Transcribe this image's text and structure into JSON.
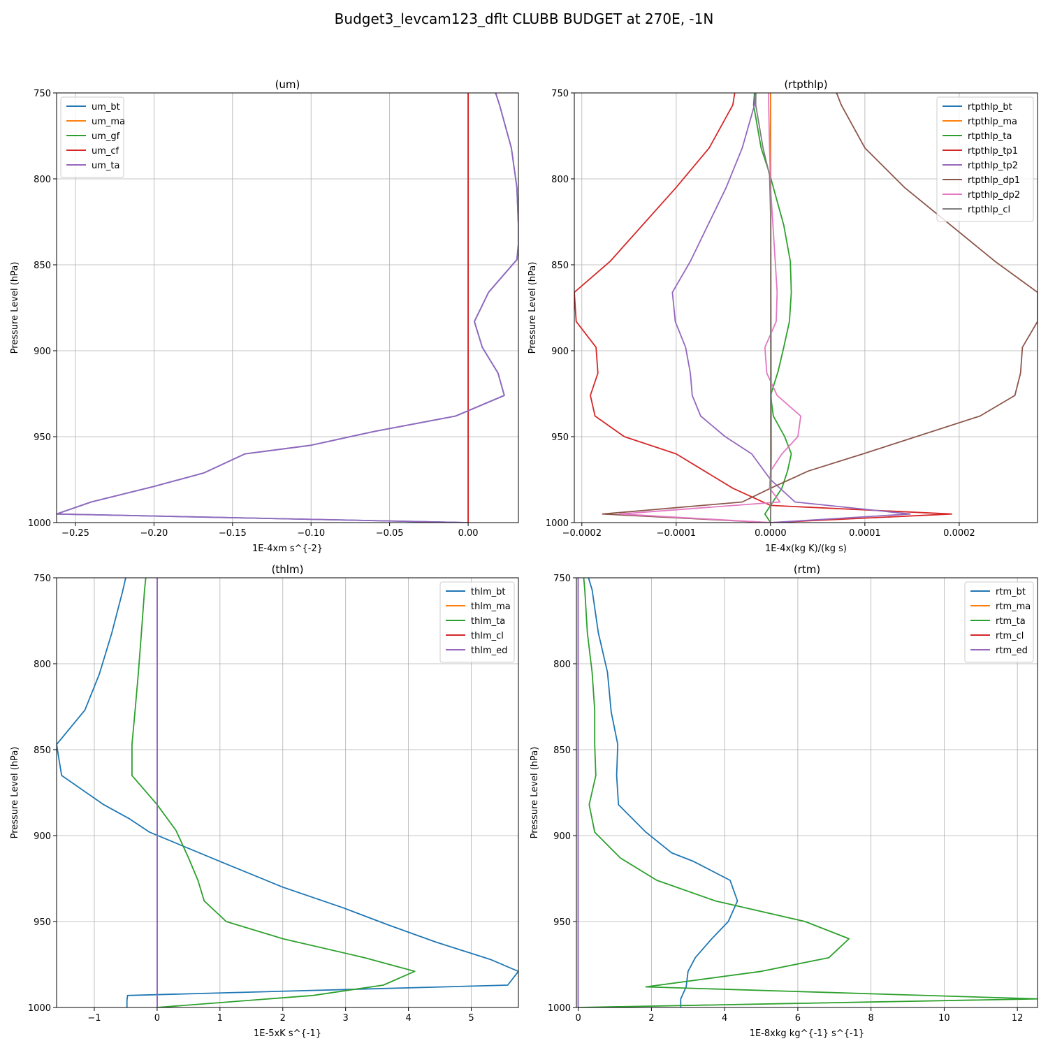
{
  "figure_title": "Budget3_levcam123_dflt CLUBB BUDGET at 270E, -1N",
  "chart_data": [
    {
      "type": "line",
      "title": "(um)",
      "xlabel": "1E-4xm s^{-2}",
      "ylabel": "Pressure Level (hPa)",
      "xlim": [
        -0.262,
        0.032
      ],
      "ylim": [
        750,
        1000
      ],
      "xticks": [
        -0.25,
        -0.2,
        -0.15,
        -0.1,
        -0.05,
        0.0
      ],
      "xtick_labels": [
        "−0.25",
        "−0.20",
        "−0.15",
        "−0.10",
        "−0.05",
        "0.00"
      ],
      "yticks": [
        750,
        800,
        850,
        900,
        950,
        1000
      ],
      "ytick_labels": [
        "750",
        "800",
        "850",
        "900",
        "950",
        "1000"
      ],
      "grid": true,
      "legend_position": "upper-left",
      "series": [
        {
          "name": "um_bt",
          "color": "#1f77b4",
          "x": [
            0.0175,
            0.02,
            0.0275,
            0.031,
            0.032,
            0.032,
            0.031,
            0.013,
            0.004,
            0.009,
            0.019,
            0.023,
            -0.008,
            -0.06,
            -0.1,
            -0.142,
            -0.168,
            -0.2,
            -0.24,
            -0.262,
            0.0
          ],
          "y": [
            750,
            757,
            782,
            805,
            827,
            838,
            847,
            866,
            883,
            898,
            913,
            926,
            938,
            947,
            955,
            960,
            971,
            979,
            988,
            995,
            1000
          ]
        },
        {
          "name": "um_ma",
          "color": "#ff7f0e",
          "x": [
            0,
            0
          ],
          "y": [
            750,
            1000
          ]
        },
        {
          "name": "um_gf",
          "color": "#2ca02c",
          "x": [
            0,
            0
          ],
          "y": [
            750,
            1000
          ]
        },
        {
          "name": "um_cf",
          "color": "#d62728",
          "x": [
            0,
            0
          ],
          "y": [
            750,
            1000
          ]
        },
        {
          "name": "um_ta",
          "color": "#9467bd",
          "x": [
            0.0175,
            0.02,
            0.0275,
            0.031,
            0.032,
            0.032,
            0.031,
            0.013,
            0.004,
            0.009,
            0.019,
            0.023,
            -0.008,
            -0.06,
            -0.1,
            -0.142,
            -0.168,
            -0.2,
            -0.24,
            -0.262,
            0.0
          ],
          "y": [
            750,
            757,
            782,
            805,
            827,
            838,
            847,
            866,
            883,
            898,
            913,
            926,
            938,
            947,
            955,
            960,
            971,
            979,
            988,
            995,
            1000
          ]
        }
      ]
    },
    {
      "type": "line",
      "title": "(rtpthlp)",
      "xlabel": "1E-4x(kg K)/(kg s)",
      "ylabel": "Pressure Level (hPa)",
      "xlim": [
        -0.000208,
        0.000283
      ],
      "ylim": [
        750,
        1000
      ],
      "xticks": [
        -0.0002,
        -0.0001,
        0.0,
        0.0001,
        0.0002
      ],
      "xtick_labels": [
        "−0.0002",
        "−0.0001",
        "0.0000",
        "0.0001",
        "0.0002"
      ],
      "yticks": [
        750,
        800,
        850,
        900,
        950,
        1000
      ],
      "ytick_labels": [
        "750",
        "800",
        "850",
        "900",
        "950",
        "1000"
      ],
      "grid": true,
      "legend_position": "upper-right",
      "series": [
        {
          "name": "rtpthlp_bt",
          "color": "#1f77b4",
          "x": [
            0,
            0
          ],
          "y": [
            750,
            1000
          ]
        },
        {
          "name": "rtpthlp_ma",
          "color": "#ff7f0e",
          "x": [
            0,
            1e-06,
            0
          ],
          "y": [
            750,
            960,
            1000
          ]
        },
        {
          "name": "rtpthlp_ta",
          "color": "#2ca02c",
          "x": [
            -1.7e-05,
            -1.8e-05,
            -1e-05,
            -1e-06,
            1.4e-05,
            2.1e-05,
            2.2e-05,
            2e-05,
            1.4e-05,
            8e-06,
            0,
            3e-06,
            1.5e-05,
            2.2e-05,
            1.8e-05,
            1.2e-05,
            -6e-06,
            0
          ],
          "y": [
            750,
            757,
            782,
            797,
            827,
            848,
            866,
            883,
            898,
            912,
            926,
            938,
            950,
            960,
            970,
            980,
            995,
            1000
          ]
        },
        {
          "name": "rtpthlp_tp1",
          "color": "#d62728",
          "x": [
            -3.8e-05,
            -4e-05,
            -6.5e-05,
            -0.0001,
            -0.00017,
            -0.000208,
            -0.000206,
            -0.000185,
            -0.000183,
            -0.000191,
            -0.000186,
            -0.000155,
            -0.0001,
            -7e-05,
            -4e-05,
            0,
            0.000192,
            0
          ],
          "y": [
            750,
            757,
            782,
            805,
            848,
            866,
            883,
            898,
            913,
            926,
            938,
            950,
            960,
            970,
            980,
            990,
            995,
            1000
          ]
        },
        {
          "name": "rtpthlp_tp2",
          "color": "#9467bd",
          "x": [
            -1.6e-05,
            -1.7e-05,
            -3e-05,
            -4.7e-05,
            -8.5e-05,
            -0.000104,
            -0.000101,
            -9e-05,
            -8.5e-05,
            -8.3e-05,
            -7.4e-05,
            -4.8e-05,
            -2e-05,
            0,
            2.6e-05,
            0.000148,
            0
          ],
          "y": [
            750,
            757,
            782,
            805,
            848,
            866,
            883,
            898,
            913,
            926,
            938,
            950,
            960,
            975,
            988,
            995,
            1000
          ]
        },
        {
          "name": "rtpthlp_dp1",
          "color": "#8c564b",
          "x": [
            7e-05,
            7.5e-05,
            0.0001,
            0.000142,
            0.000238,
            0.000283,
            0.000283,
            0.000267,
            0.000265,
            0.000259,
            0.000222,
            9.8e-05,
            4e-05,
            0,
            -3e-05,
            -0.000178,
            0
          ],
          "y": [
            750,
            757,
            782,
            805,
            848,
            866,
            883,
            898,
            913,
            926,
            938,
            960,
            970,
            980,
            988,
            995,
            1000
          ]
        },
        {
          "name": "rtpthlp_dp2",
          "color": "#e377c2",
          "x": [
            -2e-06,
            -2e-06,
            -1e-06,
            0,
            5e-06,
            7e-06,
            6e-06,
            -6e-06,
            -4e-06,
            7e-06,
            3.2e-05,
            2.9e-05,
            1.2e-05,
            0,
            -1e-06,
            1e-05,
            -0.00016,
            0
          ],
          "y": [
            750,
            757,
            782,
            805,
            848,
            866,
            883,
            898,
            913,
            926,
            938,
            950,
            960,
            970,
            980,
            988,
            995,
            1000
          ]
        },
        {
          "name": "rtpthlp_cl",
          "color": "#7f7f7f",
          "x": [
            -1.55e-05,
            -1.57e-05,
            -8e-06,
            -1e-06,
            0,
            0
          ],
          "y": [
            750,
            757,
            782,
            798,
            820,
            1000
          ]
        }
      ]
    },
    {
      "type": "line",
      "title": "(thlm)",
      "xlabel": "1E-5xK s^{-1}",
      "ylabel": "Pressure Level (hPa)",
      "xlim": [
        -1.6,
        5.75
      ],
      "ylim": [
        750,
        1000
      ],
      "xticks": [
        -1,
        0,
        1,
        2,
        3,
        4,
        5
      ],
      "xtick_labels": [
        "−1",
        "0",
        "1",
        "2",
        "3",
        "4",
        "5"
      ],
      "yticks": [
        750,
        800,
        850,
        900,
        950,
        1000
      ],
      "ytick_labels": [
        "750",
        "800",
        "850",
        "900",
        "950",
        "1000"
      ],
      "grid": true,
      "legend_position": "upper-right",
      "series": [
        {
          "name": "thlm_bt",
          "color": "#1f77b4",
          "x": [
            -0.5,
            -0.55,
            -0.72,
            -0.92,
            -1.15,
            -1.6,
            -1.52,
            -0.85,
            -0.45,
            -0.12,
            1.0,
            2.0,
            2.96,
            3.68,
            4.44,
            5.3,
            5.75,
            5.58,
            -0.47,
            -0.48,
            -0.48
          ],
          "y": [
            750,
            758,
            782,
            806,
            827,
            847,
            865,
            882,
            890,
            898,
            915,
            930,
            942,
            952,
            962,
            972,
            979,
            987,
            993,
            996,
            1000
          ]
        },
        {
          "name": "thlm_ma",
          "color": "#ff7f0e",
          "x": [
            0,
            0
          ],
          "y": [
            750,
            1000
          ]
        },
        {
          "name": "thlm_ta",
          "color": "#2ca02c",
          "x": [
            -0.18,
            -0.2,
            -0.25,
            -0.3,
            -0.35,
            -0.4,
            -0.4,
            0,
            0.3,
            0.5,
            0.65,
            0.75,
            1.1,
            2.0,
            3.3,
            4.1,
            3.6,
            2.48,
            0
          ],
          "y": [
            750,
            757,
            782,
            806,
            827,
            847,
            865,
            882,
            897,
            913,
            926,
            938,
            950,
            960,
            971,
            979,
            987,
            993,
            1000
          ]
        },
        {
          "name": "thlm_cl",
          "color": "#d62728",
          "x": [
            0,
            0
          ],
          "y": [
            750,
            1000
          ]
        },
        {
          "name": "thlm_ed",
          "color": "#9467bd",
          "x": [
            0,
            0
          ],
          "y": [
            750,
            1000
          ]
        }
      ]
    },
    {
      "type": "line",
      "title": "(rtm)",
      "xlabel": "1E-8xkg kg^{-1} s^{-1}",
      "ylabel": "Pressure Level (hPa)",
      "xlim": [
        -0.05,
        12.55
      ],
      "ylim": [
        750,
        1000
      ],
      "xticks": [
        0,
        2,
        4,
        6,
        8,
        10,
        12
      ],
      "xtick_labels": [
        "0",
        "2",
        "4",
        "6",
        "8",
        "10",
        "12"
      ],
      "yticks": [
        750,
        800,
        850,
        900,
        950,
        1000
      ],
      "ytick_labels": [
        "750",
        "800",
        "850",
        "900",
        "950",
        "1000"
      ],
      "grid": true,
      "legend_position": "upper-right",
      "series": [
        {
          "name": "rtm_bt",
          "color": "#1f77b4",
          "x": [
            0.28,
            0.38,
            0.55,
            0.8,
            0.9,
            1.08,
            1.05,
            1.1,
            1.85,
            2.55,
            3.15,
            4.15,
            4.35,
            4.1,
            3.65,
            3.2,
            3.0,
            2.95,
            2.8,
            2.8
          ],
          "y": [
            750,
            757,
            782,
            805,
            828,
            847,
            865,
            882,
            898,
            910,
            915,
            926,
            938,
            950,
            960,
            971,
            979,
            988,
            995,
            1000
          ]
        },
        {
          "name": "rtm_ma",
          "color": "#ff7f0e",
          "x": [
            0,
            0
          ],
          "y": [
            750,
            1000
          ]
        },
        {
          "name": "rtm_ta",
          "color": "#2ca02c",
          "x": [
            0.15,
            0.18,
            0.25,
            0.38,
            0.45,
            0.45,
            0.48,
            0.3,
            0.45,
            1.15,
            2.15,
            3.75,
            6.2,
            7.4,
            6.85,
            5.0,
            1.85,
            12.55,
            0
          ],
          "y": [
            750,
            757,
            782,
            805,
            827,
            847,
            865,
            882,
            898,
            913,
            926,
            938,
            950,
            960,
            971,
            979,
            988,
            995,
            1000
          ]
        },
        {
          "name": "rtm_cl",
          "color": "#d62728",
          "x": [
            0,
            0
          ],
          "y": [
            750,
            1000
          ]
        },
        {
          "name": "rtm_ed",
          "color": "#9467bd",
          "x": [
            0,
            0
          ],
          "y": [
            750,
            1000
          ]
        }
      ]
    }
  ]
}
